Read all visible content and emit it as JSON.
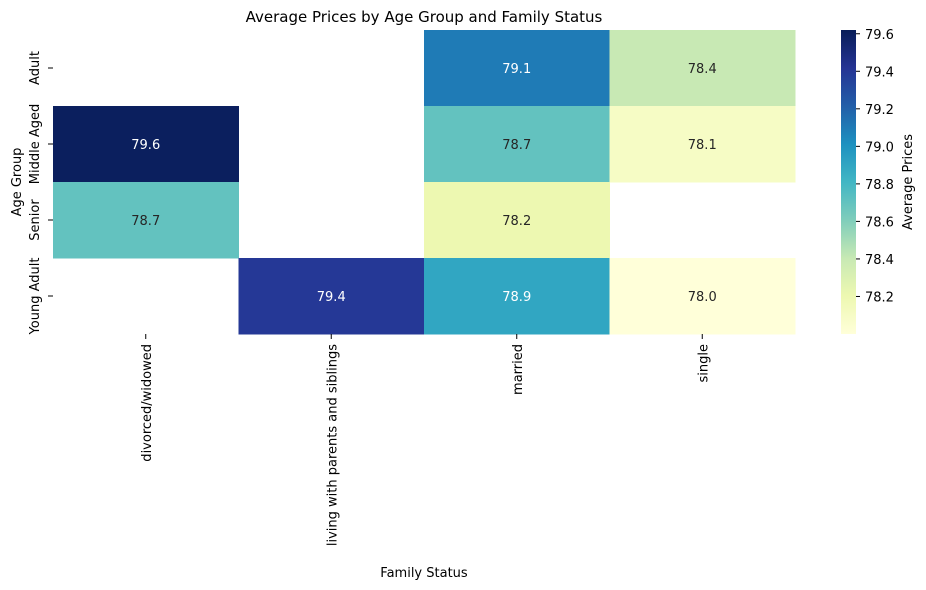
{
  "chart_data": {
    "type": "heatmap",
    "title": "Average Prices by Age Group and Family Status",
    "xlabel": "Family Status",
    "ylabel": "Age Group",
    "x_categories": [
      "divorced/widowed",
      "living with parents and siblings",
      "married",
      "single"
    ],
    "y_categories": [
      "Adult",
      "Middle Aged",
      "Senior",
      "Young Adult"
    ],
    "values": [
      [
        null,
        null,
        79.1,
        78.4
      ],
      [
        79.6,
        null,
        78.7,
        78.1
      ],
      [
        78.7,
        null,
        78.2,
        null
      ],
      [
        null,
        79.4,
        78.9,
        78.0
      ]
    ],
    "colorbar": {
      "label": "Average Prices",
      "ticks": [
        78.2,
        78.4,
        78.6,
        78.8,
        79.0,
        79.2,
        79.4,
        79.6
      ],
      "range": [
        78.0,
        79.62
      ],
      "colormap": "YlGnBu"
    }
  }
}
